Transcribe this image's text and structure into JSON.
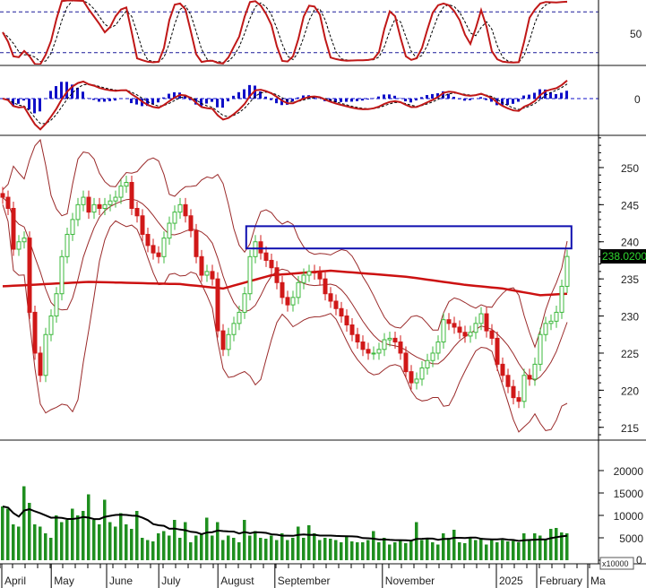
{
  "chart_data": [
    {
      "panel": "stochastic",
      "type": "line",
      "ylim": [
        0,
        100
      ],
      "ticks": [
        "50"
      ],
      "reference_levels": [
        80,
        20
      ],
      "colors": {
        "k": "#c01818",
        "d": "#000000",
        "ref": "#1a1a9a"
      }
    },
    {
      "panel": "macd",
      "type": "line+bar",
      "ticks": [
        "0"
      ],
      "colors": {
        "macd": "#c01818",
        "signal": "#000000",
        "hist": "#1010c8"
      }
    },
    {
      "panel": "price",
      "type": "candlestick",
      "ylim": [
        213.4,
        254.1
      ],
      "ticks": [
        215,
        220,
        225,
        230,
        235,
        240,
        245,
        250
      ],
      "last_price_label": "238.0200",
      "close": [
        246,
        244.5,
        239,
        240,
        240.5,
        230.5,
        225,
        222,
        227.5,
        230,
        233,
        238,
        241,
        243,
        245,
        246,
        244,
        245,
        244.5,
        245,
        245.5,
        246,
        247.5,
        248,
        244.5,
        243.5,
        241,
        239.5,
        238.5,
        238,
        240.5,
        242.5,
        244,
        245,
        243.5,
        241.5,
        238,
        235.5,
        236,
        235,
        228,
        225.5,
        227.5,
        229,
        230.5,
        233,
        238,
        240,
        238.5,
        237.5,
        236.5,
        234.5,
        232.5,
        231.5,
        232.5,
        234.5,
        235.5,
        236,
        235.8,
        235,
        233,
        232,
        231,
        230,
        228.8,
        227.5,
        226.5,
        225.5,
        225,
        225,
        225.5,
        226.8,
        227,
        226.5,
        225,
        222.5,
        221,
        221.5,
        223,
        224,
        225,
        226.5,
        229.5,
        229,
        228.5,
        227.8,
        227.3,
        227.8,
        229,
        230.3,
        228,
        227,
        223.5,
        222,
        220.5,
        219,
        218.5,
        222,
        221.5,
        223.5,
        227.5,
        229,
        229.3,
        230.5,
        234,
        238.02
      ],
      "long_ma": [
        [
          0,
          234
        ],
        [
          16,
          234.6
        ],
        [
          33,
          234.3
        ],
        [
          41,
          233.7
        ],
        [
          50,
          235.5
        ],
        [
          61,
          236.1
        ],
        [
          75,
          235.3
        ],
        [
          86,
          234.2
        ],
        [
          93,
          233.7
        ],
        [
          100,
          232.8
        ],
        [
          105,
          233
        ]
      ],
      "resistance_zone": {
        "from_index": 45.3,
        "to_index": 105.8,
        "low": 239.1,
        "high": 242.1,
        "color": "#1010b0"
      },
      "colors": {
        "up": "#3cb83c",
        "down": "#d01818",
        "bands": "#9a2a2a",
        "long_ma": "#cc1111"
      }
    },
    {
      "panel": "volume",
      "type": "bar",
      "ylim": [
        -600,
        26400
      ],
      "ticks": [
        0,
        5000,
        10000,
        15000,
        20000
      ],
      "unit_label": "x10000",
      "values": [
        12000,
        11500,
        8000,
        7500,
        16500,
        12800,
        8000,
        7500,
        6000,
        5000,
        10000,
        8500,
        9000,
        11500,
        10000,
        11000,
        14700,
        9000,
        8000,
        13500,
        8500,
        7500,
        10500,
        8000,
        7000,
        11000,
        5000,
        4500,
        4200,
        6000,
        6500,
        5500,
        9000,
        5000,
        8500,
        4000,
        5500,
        6000,
        9500,
        5500,
        8500,
        4500,
        5500,
        5000,
        4000,
        9000,
        5500,
        6500,
        5000,
        4800,
        5500,
        4500,
        6000,
        4500,
        5000,
        7500,
        5000,
        7800,
        6000,
        4500,
        5000,
        4800,
        4500,
        4000,
        5500,
        4200,
        4000,
        4000,
        4500,
        6500,
        4000,
        5000,
        3500,
        4000,
        4500,
        3800,
        4500,
        8500,
        4500,
        5000,
        4000,
        3500,
        6000,
        5000,
        6800,
        4000,
        3800,
        5200,
        4500,
        5000,
        3500,
        4500,
        4000,
        4500,
        4200,
        4300,
        4000,
        6000,
        4500,
        6000,
        5500,
        4500,
        7000,
        7200,
        6200,
        6000
      ],
      "colors": {
        "bar": "#1f8f1f",
        "ma": "#000000"
      }
    }
  ],
  "x_axis": {
    "labels": [
      {
        "text": "April",
        "at": 0
      },
      {
        "text": "May",
        "at": 9.2
      },
      {
        "text": "June",
        "at": 19.5
      },
      {
        "text": "July",
        "at": 29.2
      },
      {
        "text": "August",
        "at": 40.2
      },
      {
        "text": "September",
        "at": 50.8
      },
      {
        "text": "November",
        "at": 70.8
      },
      {
        "text": "2025",
        "at": 92
      },
      {
        "text": "February",
        "at": 99.5
      },
      {
        "text": "Ma",
        "at": 109
      }
    ]
  }
}
